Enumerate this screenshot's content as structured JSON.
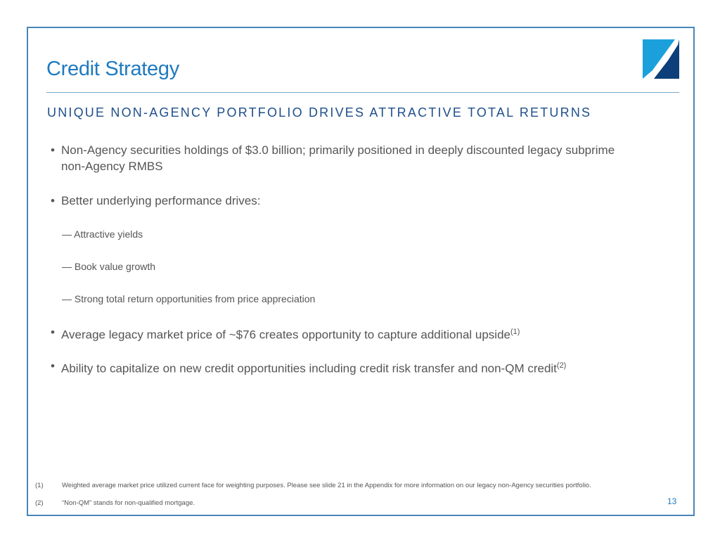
{
  "title": "Credit Strategy",
  "subtitle": "UNIQUE NON-AGENCY PORTFOLIO DRIVES ATTRACTIVE TOTAL RETURNS",
  "bullets": [
    "Non-Agency securities holdings of $3.0 billion; primarily positioned in deeply discounted legacy subprime non-Agency RMBS",
    "Better underlying performance drives:",
    "Average legacy market price of ~$76 creates opportunity to capture additional upside",
    "Ability to capitalize on new credit opportunities including credit risk transfer and non-QM credit"
  ],
  "bullet_marks": [
    "(1)",
    "(2)"
  ],
  "sub_bullets": [
    "Attractive yields",
    "Book value growth",
    "Strong total return opportunities from price appreciation"
  ],
  "footnotes": [
    {
      "num": "(1)",
      "text": "Weighted average market price utilized current face for weighting purposes.  Please see slide 21 in the Appendix for more information on our legacy non-Agency securities portfolio."
    },
    {
      "num": "(2)",
      "text": "“Non-QM” stands for non-qualified mortgage."
    }
  ],
  "page_number": "13",
  "colors": {
    "accent": "#1f7ac0",
    "logo_light": "#1ba0dc",
    "logo_dark": "#0d3f7a"
  }
}
